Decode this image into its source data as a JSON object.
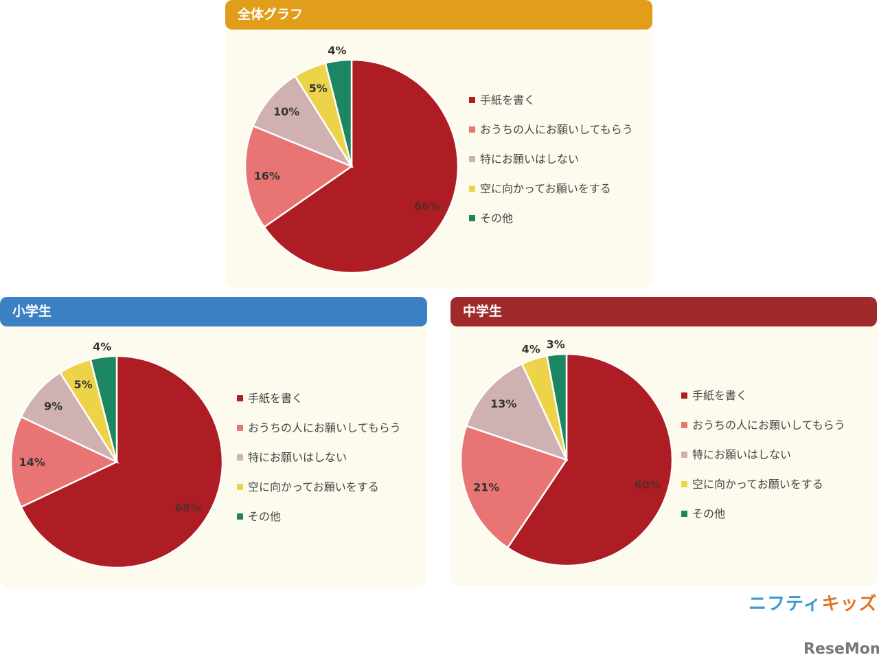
{
  "colors": {
    "writing": "#ae1c24",
    "family": "#e87474",
    "none": "#d0b1b1",
    "sky": "#ecd34a",
    "other": "#1b8661"
  },
  "legend_labels": [
    "手紙を書く",
    "おうちの人にお願いしてもらう",
    "特にお願いはしない",
    "空に向かってお願いをする",
    "その他"
  ],
  "chart_data": [
    {
      "type": "pie",
      "title": "全体グラフ",
      "header_color": "#e09e1a",
      "categories": [
        "手紙を書く",
        "おうちの人にお願いしてもらう",
        "特にお願いはしない",
        "空に向かってお願いをする",
        "その他"
      ],
      "values": [
        66,
        16,
        10,
        5,
        4
      ],
      "labels": [
        "66%",
        "16%",
        "10%",
        "5%",
        "4%"
      ],
      "legend": "right"
    },
    {
      "type": "pie",
      "title": "小学生",
      "header_color": "#3a80c3",
      "categories": [
        "手紙を書く",
        "おうちの人にお願いしてもらう",
        "特にお願いはしない",
        "空に向かってお願いをする",
        "その他"
      ],
      "values": [
        68,
        14,
        9,
        5,
        4
      ],
      "labels": [
        "68%",
        "14%",
        "9%",
        "5%",
        "4%"
      ],
      "legend": "right"
    },
    {
      "type": "pie",
      "title": "中学生",
      "header_color": "#a0292b",
      "categories": [
        "手紙を書く",
        "おうちの人にお願いしてもらう",
        "特にお願いはしない",
        "空に向かってお願いをする",
        "その他"
      ],
      "values": [
        60,
        21,
        13,
        4,
        3
      ],
      "labels": [
        "60%",
        "21%",
        "13%",
        "4%",
        "3%"
      ],
      "legend": "right"
    }
  ],
  "logos": {
    "nifty_a": "ニフティ",
    "nifty_b": "キッズ",
    "resemom": "ReseMom"
  }
}
